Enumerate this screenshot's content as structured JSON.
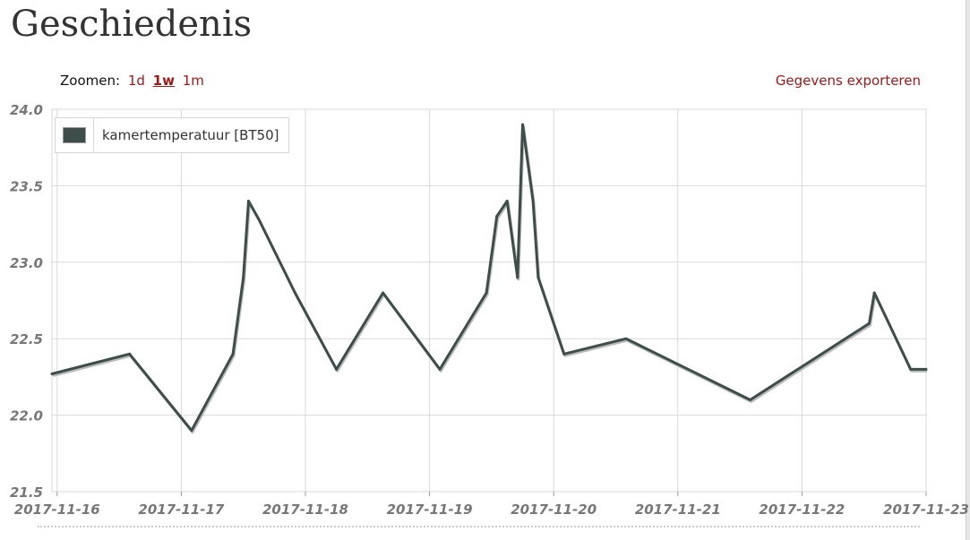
{
  "page": {
    "title": "Geschiedenis"
  },
  "toolbar": {
    "zoom_label": "Zoomen:",
    "zoom_options": [
      "1d",
      "1w",
      "1m"
    ],
    "zoom_active": "1w",
    "export_label": "Gegevens exporteren"
  },
  "colors": {
    "line": "#3d4d4a",
    "link": "#a01818",
    "grid": "#d9d9d9"
  },
  "chart_data": {
    "type": "line",
    "title": "",
    "xlabel": "",
    "ylabel": "",
    "xlim": [
      "2017-11-15 23:00",
      "2017-11-23 00:00"
    ],
    "ylim": [
      21.5,
      24.0
    ],
    "yticks": [
      "21.5",
      "22.0",
      "22.5",
      "23.0",
      "23.5",
      "24.0"
    ],
    "xticks": [
      "2017-11-16",
      "2017-11-17",
      "2017-11-18",
      "2017-11-19",
      "2017-11-20",
      "2017-11-21",
      "2017-11-22",
      "2017-11-23"
    ],
    "grid": true,
    "legend_position": "top-left",
    "series": [
      {
        "name": "kamertemperatuur [BT50]",
        "color": "#3d4d4a",
        "points": [
          [
            "2017-11-15 23:00",
            22.27
          ],
          [
            "2017-11-16 14:00",
            22.4
          ],
          [
            "2017-11-17 02:00",
            21.9
          ],
          [
            "2017-11-17 10:00",
            22.4
          ],
          [
            "2017-11-17 12:00",
            22.9
          ],
          [
            "2017-11-17 13:00",
            23.4
          ],
          [
            "2017-11-17 15:00",
            23.28
          ],
          [
            "2017-11-17 22:00",
            22.8
          ],
          [
            "2017-11-18 06:00",
            22.3
          ],
          [
            "2017-11-18 15:00",
            22.8
          ],
          [
            "2017-11-19 02:00",
            22.3
          ],
          [
            "2017-11-19 11:00",
            22.8
          ],
          [
            "2017-11-19 13:00",
            23.3
          ],
          [
            "2017-11-19 15:00",
            23.4
          ],
          [
            "2017-11-19 17:00",
            22.9
          ],
          [
            "2017-11-19 18:00",
            23.9
          ],
          [
            "2017-11-19 20:00",
            23.4
          ],
          [
            "2017-11-19 21:00",
            22.9
          ],
          [
            "2017-11-20 02:00",
            22.4
          ],
          [
            "2017-11-20 14:00",
            22.5
          ],
          [
            "2017-11-21 14:00",
            22.1
          ],
          [
            "2017-11-22 13:00",
            22.6
          ],
          [
            "2017-11-22 14:00",
            22.8
          ],
          [
            "2017-11-22 21:00",
            22.3
          ],
          [
            "2017-11-23 00:00",
            22.3
          ]
        ]
      }
    ]
  }
}
